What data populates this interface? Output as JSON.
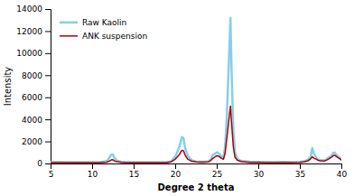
{
  "chart_data": {
    "type": "line",
    "xlabel": "Degree 2 theta",
    "ylabel": "Intensity",
    "x": [
      5.0,
      6.0,
      7.0,
      8.0,
      9.0,
      10.0,
      10.5,
      11.0,
      11.8,
      12.0,
      12.3,
      12.5,
      12.7,
      13.0,
      13.5,
      14.0,
      15.0,
      16.0,
      17.0,
      18.0,
      19.0,
      19.5,
      20.0,
      20.5,
      20.8,
      21.0,
      21.2,
      21.5,
      22.0,
      22.5,
      23.0,
      23.5,
      24.0,
      24.3,
      24.5,
      24.8,
      25.0,
      25.2,
      25.5,
      25.8,
      26.0,
      26.2,
      26.5,
      26.65,
      26.8,
      27.0,
      27.2,
      27.5,
      28.0,
      29.0,
      30.0,
      31.0,
      32.0,
      33.0,
      34.0,
      35.0,
      35.5,
      36.0,
      36.3,
      36.5,
      36.7,
      37.0,
      37.2,
      37.5,
      38.0,
      38.2,
      38.5,
      38.8,
      39.0,
      39.2,
      39.5,
      39.8,
      40.0
    ],
    "series": [
      {
        "name": "Raw Kaolin",
        "color": "#87CEEB",
        "values": [
          130,
          120,
          110,
          105,
          100,
          105,
          110,
          120,
          220,
          450,
          800,
          820,
          500,
          250,
          160,
          130,
          110,
          110,
          105,
          110,
          130,
          200,
          600,
          1500,
          2400,
          2300,
          1400,
          700,
          280,
          180,
          160,
          170,
          200,
          400,
          750,
          900,
          1000,
          950,
          700,
          500,
          1500,
          4000,
          10000,
          13200,
          8000,
          3000,
          1000,
          400,
          220,
          160,
          140,
          130,
          130,
          135,
          130,
          140,
          200,
          350,
          600,
          1400,
          900,
          500,
          350,
          300,
          280,
          400,
          550,
          700,
          950,
          1000,
          700,
          500,
          350
        ]
      },
      {
        "name": "ANK suspension",
        "color": "#AA0000",
        "values": [
          90,
          85,
          80,
          78,
          75,
          78,
          80,
          85,
          120,
          200,
          320,
          340,
          230,
          160,
          110,
          90,
          80,
          80,
          78,
          80,
          90,
          150,
          380,
          800,
          1200,
          1150,
          750,
          400,
          200,
          140,
          120,
          130,
          150,
          280,
          450,
          600,
          700,
          680,
          500,
          380,
          900,
          2200,
          4200,
          5200,
          3500,
          1500,
          550,
          280,
          160,
          110,
          95,
          90,
          90,
          92,
          90,
          95,
          150,
          250,
          420,
          620,
          480,
          380,
          290,
          250,
          230,
          300,
          420,
          560,
          700,
          750,
          580,
          430,
          300
        ]
      }
    ],
    "xlim": [
      5,
      40
    ],
    "ylim": [
      0,
      14000
    ],
    "xticks": [
      5,
      10,
      15,
      20,
      25,
      30,
      35,
      40
    ],
    "yticks": [
      0,
      2000,
      4000,
      6000,
      8000,
      10000,
      12000,
      14000
    ],
    "grid": false,
    "legend": "upper left"
  }
}
